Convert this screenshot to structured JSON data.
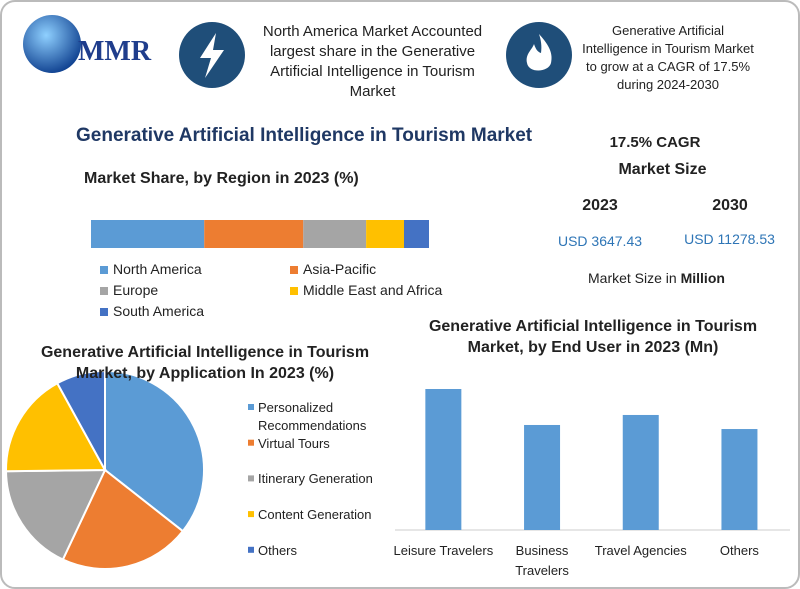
{
  "header": {
    "logo": "MMR",
    "highlight_1": "North America Market Accounted largest share in the Generative Artificial Intelligence in Tourism Market",
    "highlight_2": "Generative Artificial Intelligence in Tourism Market to grow at a CAGR of 17.5% during 2024-2030"
  },
  "title": "Generative Artificial Intelligence in Tourism Market",
  "market_size": {
    "cagr": "17.5% CAGR",
    "heading": "Market Size",
    "years": [
      "2023",
      "2030"
    ],
    "values": [
      "USD 3647.43",
      "USD 11278.53"
    ],
    "unit_note": "Market Size in",
    "unit": "Million"
  },
  "chart_data": [
    {
      "type": "stacked_bar",
      "title": "Market Share, by Region in 2023 (%)",
      "series": [
        {
          "name": "North America",
          "color": "#5b9bd5",
          "values": [
            33.5
          ]
        },
        {
          "name": "Asia-Pacific",
          "color": "#ed7d31",
          "values": [
            29.3
          ]
        },
        {
          "name": "Europe",
          "color": "#a5a5a5",
          "values": [
            18.6
          ]
        },
        {
          "name": "Middle East and Africa",
          "color": "#ffc000",
          "values": [
            11.2
          ]
        },
        {
          "name": "South America",
          "color": "#4472c4",
          "values": [
            7.4
          ]
        }
      ]
    },
    {
      "type": "pie",
      "title": "Generative Artificial Intelligence in Tourism Market, by Application In 2023 (%)",
      "categories": [
        "Personalized Recommendations",
        "Virtual Tours",
        "Itinerary Generation",
        "Content Generation",
        "Others"
      ],
      "values": [
        35.6,
        21.4,
        17.8,
        17.2,
        8.0
      ],
      "colors": [
        "#5b9bd5",
        "#ed7d31",
        "#a5a5a5",
        "#ffc000",
        "#4472c4"
      ]
    },
    {
      "type": "bar",
      "title": "Generative Artificial Intelligence in Tourism Market, by End User in 2023 (Mn)",
      "categories": [
        "Leisure Travelers",
        "Business Travelers",
        "Travel Agencies",
        "Others"
      ],
      "values": [
        1113,
        829,
        908,
        797
      ],
      "color": "#5b9bd5"
    }
  ]
}
